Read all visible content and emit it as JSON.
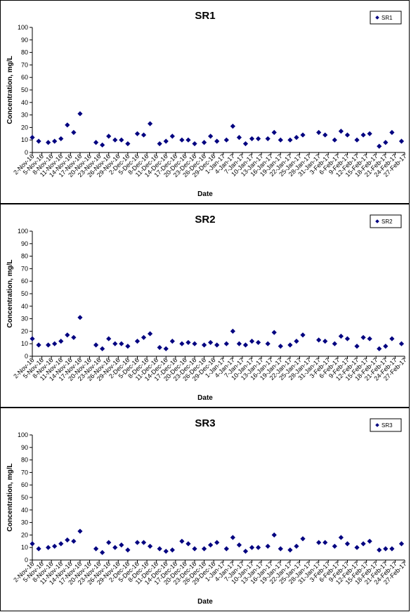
{
  "chart_data": [
    {
      "type": "scatter",
      "title": "SR1",
      "xlabel": "Date",
      "ylabel": "Concentration, mg/L",
      "ylim": [
        0,
        100
      ],
      "yticks": [
        0,
        10,
        20,
        30,
        40,
        50,
        60,
        70,
        80,
        90,
        100
      ],
      "legend_position": "top-right",
      "marker_color": "#000080",
      "x_tick_labels": [
        "2-Nov-16",
        "5-Nov-16",
        "8-Nov-16",
        "11-Nov-16",
        "14-Nov-16",
        "17-Nov-16",
        "20-Nov-16",
        "23-Nov-16",
        "26-Nov-16",
        "29-Nov-16",
        "2-Dec-16",
        "5-Dec-16",
        "8-Dec-16",
        "11-Dec-16",
        "14-Dec-16",
        "17-Dec-16",
        "20-Dec-16",
        "23-Dec-16",
        "26-Dec-16",
        "29-Dec-16",
        "1-Jan-17",
        "4-Jan-17",
        "7-Jan-17",
        "10-Jan-17",
        "13-Jan-17",
        "16-Jan-17",
        "19-Jan-17",
        "22-Jan-17",
        "25-Jan-17",
        "28-Jan-17",
        "31-Jan-17",
        "3-Feb-17",
        "6-Feb-17",
        "9-Feb-17",
        "12-Feb-17",
        "15-Feb-17",
        "18-Feb-17",
        "21-Feb-17",
        "24-Feb-17",
        "27-Feb-17"
      ],
      "series": [
        {
          "name": "SR1",
          "x": [
            "2016-11-02",
            "2016-11-04",
            "2016-11-07",
            "2016-11-09",
            "2016-11-11",
            "2016-11-13",
            "2016-11-15",
            "2016-11-17",
            "2016-11-22",
            "2016-11-24",
            "2016-11-26",
            "2016-11-28",
            "2016-11-30",
            "2016-12-02",
            "2016-12-05",
            "2016-12-07",
            "2016-12-09",
            "2016-12-12",
            "2016-12-14",
            "2016-12-16",
            "2016-12-19",
            "2016-12-21",
            "2016-12-23",
            "2016-12-26",
            "2016-12-28",
            "2016-12-30",
            "2017-01-02",
            "2017-01-04",
            "2017-01-06",
            "2017-01-08",
            "2017-01-10",
            "2017-01-12",
            "2017-01-15",
            "2017-01-17",
            "2017-01-19",
            "2017-01-22",
            "2017-01-24",
            "2017-01-26",
            "2017-01-31",
            "2017-02-02",
            "2017-02-05",
            "2017-02-07",
            "2017-02-09",
            "2017-02-12",
            "2017-02-14",
            "2017-02-16",
            "2017-02-19",
            "2017-02-21",
            "2017-02-23",
            "2017-02-26"
          ],
          "y": [
            12,
            9,
            8,
            9,
            11,
            22,
            16,
            31,
            8,
            6,
            13,
            10,
            10,
            7,
            15,
            14,
            23,
            7,
            9,
            13,
            10,
            10,
            7,
            8,
            13,
            9,
            10,
            21,
            12,
            7,
            11,
            11,
            11,
            16,
            10,
            10,
            12,
            14,
            16,
            14,
            10,
            17,
            14,
            10,
            14,
            15,
            5,
            8,
            16,
            9
          ]
        }
      ]
    },
    {
      "type": "scatter",
      "title": "SR2",
      "xlabel": "Date",
      "ylabel": "Concentration, mg/L",
      "ylim": [
        0,
        100
      ],
      "yticks": [
        0,
        10,
        20,
        30,
        40,
        50,
        60,
        70,
        80,
        90,
        100
      ],
      "legend_position": "top-right",
      "marker_color": "#000080",
      "x_tick_labels": [
        "2-Nov-16",
        "5-Nov-16",
        "8-Nov-16",
        "11-Nov-16",
        "14-Nov-16",
        "17-Nov-16",
        "20-Nov-16",
        "23-Nov-16",
        "26-Nov-16",
        "29-Nov-16",
        "2-Dec-16",
        "5-Dec-16",
        "8-Dec-16",
        "11-Dec-16",
        "14-Dec-16",
        "17-Dec-16",
        "20-Dec-16",
        "23-Dec-16",
        "26-Dec-16",
        "29-Dec-16",
        "1-Jan-17",
        "4-Jan-17",
        "7-Jan-17",
        "10-Jan-17",
        "13-Jan-17",
        "16-Jan-17",
        "19-Jan-17",
        "22-Jan-17",
        "25-Jan-17",
        "28-Jan-17",
        "31-Jan-17",
        "3-Feb-17",
        "6-Feb-17",
        "9-Feb-17",
        "12-Feb-17",
        "15-Feb-17",
        "18-Feb-17",
        "21-Feb-17",
        "24-Feb-17",
        "27-Feb-17"
      ],
      "series": [
        {
          "name": "SR2",
          "x": [
            "2016-11-02",
            "2016-11-04",
            "2016-11-07",
            "2016-11-09",
            "2016-11-11",
            "2016-11-13",
            "2016-11-15",
            "2016-11-17",
            "2016-11-22",
            "2016-11-24",
            "2016-11-26",
            "2016-11-28",
            "2016-11-30",
            "2016-12-02",
            "2016-12-05",
            "2016-12-07",
            "2016-12-09",
            "2016-12-12",
            "2016-12-14",
            "2016-12-16",
            "2016-12-19",
            "2016-12-21",
            "2016-12-23",
            "2016-12-26",
            "2016-12-28",
            "2016-12-30",
            "2017-01-02",
            "2017-01-04",
            "2017-01-06",
            "2017-01-08",
            "2017-01-10",
            "2017-01-12",
            "2017-01-15",
            "2017-01-17",
            "2017-01-19",
            "2017-01-22",
            "2017-01-24",
            "2017-01-26",
            "2017-01-31",
            "2017-02-02",
            "2017-02-05",
            "2017-02-07",
            "2017-02-09",
            "2017-02-12",
            "2017-02-14",
            "2017-02-16",
            "2017-02-19",
            "2017-02-21",
            "2017-02-23",
            "2017-02-26"
          ],
          "y": [
            14,
            9,
            9,
            10,
            12,
            17,
            15,
            31,
            9,
            6,
            14,
            10,
            10,
            8,
            12,
            15,
            18,
            7,
            6,
            12,
            10,
            11,
            10,
            9,
            11,
            9,
            10,
            20,
            10,
            9,
            12,
            11,
            10,
            19,
            8,
            9,
            12,
            17,
            13,
            12,
            10,
            16,
            14,
            8,
            15,
            14,
            6,
            8,
            14,
            10
          ]
        }
      ]
    },
    {
      "type": "scatter",
      "title": "SR3",
      "xlabel": "Date",
      "ylabel": "Concentration, mg/L",
      "ylim": [
        0,
        100
      ],
      "yticks": [
        0,
        10,
        20,
        30,
        40,
        50,
        60,
        70,
        80,
        90,
        100
      ],
      "legend_position": "top-right",
      "marker_color": "#000080",
      "x_tick_labels": [
        "2-Nov-16",
        "5-Nov-16",
        "8-Nov-16",
        "11-Nov-16",
        "14-Nov-16",
        "17-Nov-16",
        "20-Nov-16",
        "23-Nov-16",
        "26-Nov-16",
        "29-Nov-16",
        "2-Dec-16",
        "5-Dec-16",
        "8-Dec-16",
        "11-Dec-16",
        "14-Dec-16",
        "17-Dec-16",
        "20-Dec-16",
        "23-Dec-16",
        "26-Dec-16",
        "29-Dec-16",
        "1-Jan-17",
        "4-Jan-17",
        "7-Jan-17",
        "10-Jan-17",
        "13-Jan-17",
        "16-Jan-17",
        "19-Jan-17",
        "22-Jan-17",
        "25-Jan-17",
        "28-Jan-17",
        "31-Jan-17",
        "3-Feb-17",
        "6-Feb-17",
        "9-Feb-17",
        "12-Feb-17",
        "15-Feb-17",
        "18-Feb-17",
        "21-Feb-17",
        "24-Feb-17",
        "27-Feb-17"
      ],
      "series": [
        {
          "name": "SR3",
          "x": [
            "2016-11-02",
            "2016-11-04",
            "2016-11-07",
            "2016-11-09",
            "2016-11-11",
            "2016-11-13",
            "2016-11-15",
            "2016-11-17",
            "2016-11-22",
            "2016-11-24",
            "2016-11-26",
            "2016-11-28",
            "2016-11-30",
            "2016-12-02",
            "2016-12-05",
            "2016-12-07",
            "2016-12-09",
            "2016-12-12",
            "2016-12-14",
            "2016-12-16",
            "2016-12-19",
            "2016-12-21",
            "2016-12-23",
            "2016-12-26",
            "2016-12-28",
            "2016-12-30",
            "2017-01-02",
            "2017-01-04",
            "2017-01-06",
            "2017-01-08",
            "2017-01-10",
            "2017-01-12",
            "2017-01-15",
            "2017-01-17",
            "2017-01-19",
            "2017-01-22",
            "2017-01-24",
            "2017-01-26",
            "2017-01-31",
            "2017-02-02",
            "2017-02-05",
            "2017-02-07",
            "2017-02-09",
            "2017-02-12",
            "2017-02-14",
            "2017-02-16",
            "2017-02-19",
            "2017-02-21",
            "2017-02-23",
            "2017-02-26"
          ],
          "y": [
            13,
            9,
            10,
            11,
            13,
            16,
            15,
            23,
            9,
            6,
            14,
            10,
            12,
            8,
            14,
            14,
            11,
            9,
            7,
            8,
            15,
            13,
            9,
            9,
            12,
            14,
            9,
            18,
            12,
            7,
            10,
            10,
            11,
            20,
            9,
            8,
            11,
            17,
            14,
            14,
            11,
            18,
            13,
            10,
            13,
            15,
            8,
            9,
            9,
            13
          ]
        }
      ]
    }
  ]
}
